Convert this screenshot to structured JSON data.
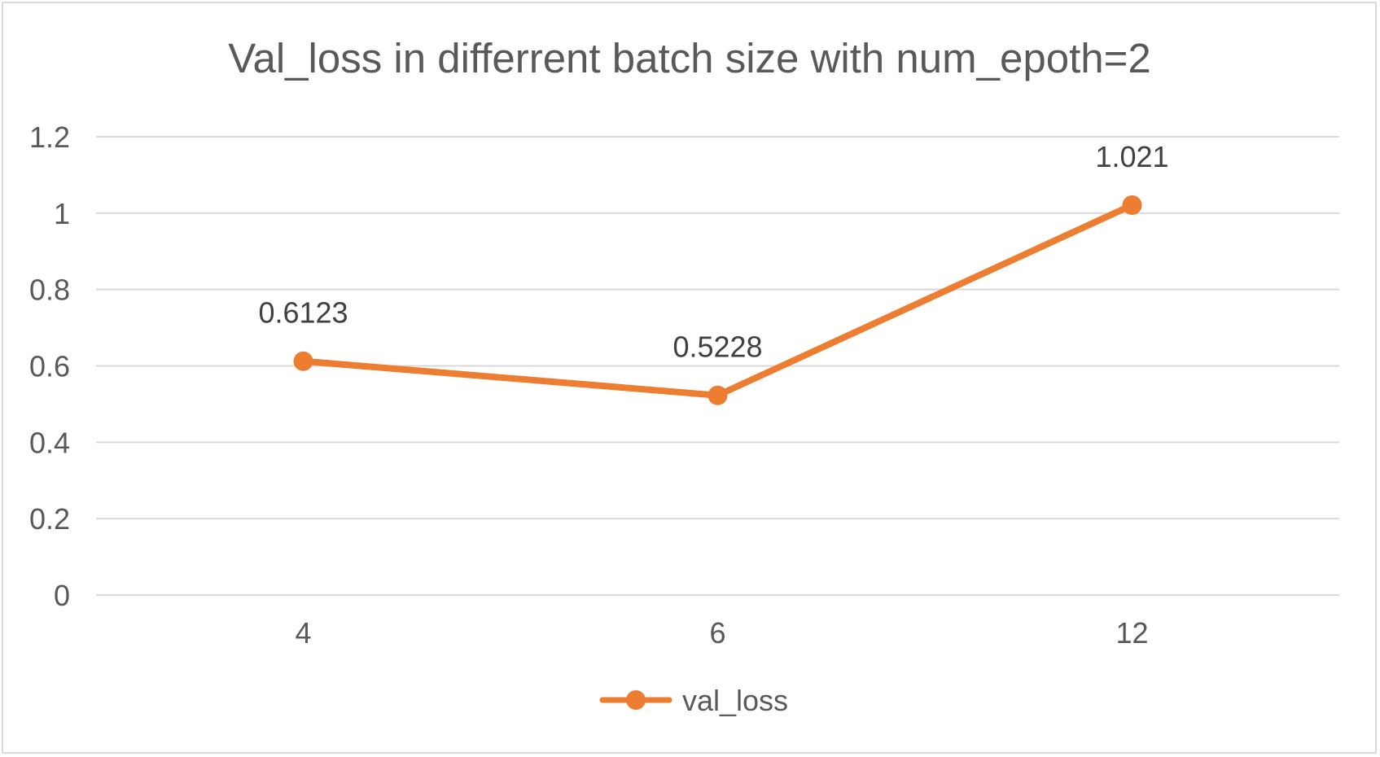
{
  "chart_data": {
    "type": "line",
    "title": "Val_loss in differrent batch size with num_epoth=2",
    "categories": [
      "4",
      "6",
      "12"
    ],
    "series": [
      {
        "name": "val_loss",
        "values": [
          0.6123,
          0.5228,
          1.021
        ],
        "labels": [
          "0.6123",
          "0.5228",
          "1.021"
        ],
        "color": "#ED7D31"
      }
    ],
    "ylim": [
      0,
      1.2
    ],
    "yticks": [
      "0",
      "0.2",
      "0.4",
      "0.6",
      "0.8",
      "1",
      "1.2"
    ],
    "grid": true,
    "legend": "bottom"
  }
}
